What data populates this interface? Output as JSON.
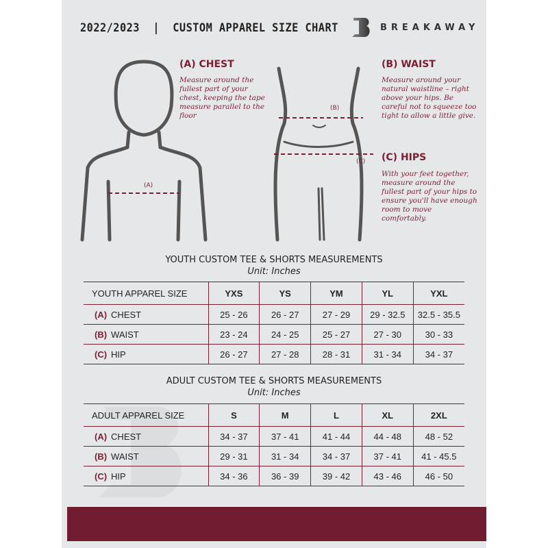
{
  "header": {
    "title": "2022/2023  |  CUSTOM APPAREL SIZE CHART",
    "brand": "BREAKAWAY"
  },
  "measures": {
    "chest": {
      "heading": "(A) CHEST",
      "text": "Measure around the fullest part of your chest, keeping the tape measure parallel to the floor",
      "marker": "(A)"
    },
    "waist": {
      "heading": "(B) WAIST",
      "text": "Measure around your natural waistline – right above your hips. Be careful not to squeeze too tight to allow a little give.",
      "marker": "(B)"
    },
    "hips": {
      "heading": "(C) HIPS",
      "text": "With your feet together, measure around the fullest part of your hips to ensure you'll have enough room to move comfortably.",
      "marker": "(C)"
    }
  },
  "youth": {
    "title": "YOUTH CUSTOM TEE & SHORTS MEASUREMENTS",
    "unit": "Unit: Inches",
    "header": [
      "YOUTH APPAREL SIZE",
      "YXS",
      "YS",
      "YM",
      "YL",
      "YXL"
    ],
    "rows": [
      {
        "letter": "(A)",
        "label": "CHEST",
        "values": [
          "25 - 26",
          "26 - 27",
          "27 - 29",
          "29 - 32.5",
          "32.5 - 35.5"
        ]
      },
      {
        "letter": "(B)",
        "label": "WAIST",
        "values": [
          "23 - 24",
          "24 - 25",
          "25 - 27",
          "27 - 30",
          "30 - 33"
        ]
      },
      {
        "letter": "(C)",
        "label": "HIP",
        "values": [
          "26 - 27",
          "27 - 28",
          "28 - 31",
          "31 - 34",
          "34 - 37"
        ]
      }
    ]
  },
  "adult": {
    "title": "ADULT CUSTOM TEE & SHORTS MEASUREMENTS",
    "unit": "Unit: Inches",
    "header": [
      "ADULT APPAREL SIZE",
      "S",
      "M",
      "L",
      "XL",
      "2XL"
    ],
    "rows": [
      {
        "letter": "(A)",
        "label": "CHEST",
        "values": [
          "34 - 37",
          "37 - 41",
          "41 - 44",
          "44 - 48",
          "48 - 52"
        ]
      },
      {
        "letter": "(B)",
        "label": "WAIST",
        "values": [
          "29 - 31",
          "31 - 34",
          "34 - 37",
          "37 - 41",
          "41 - 45.5"
        ]
      },
      {
        "letter": "(C)",
        "label": "HIP",
        "values": [
          "34 - 36",
          "36 - 39",
          "39 - 42",
          "43 - 46",
          "46 - 50"
        ]
      }
    ]
  },
  "colors": {
    "accent": "#7a1f33",
    "band": "#701b30",
    "background": "#e6e7e9"
  }
}
